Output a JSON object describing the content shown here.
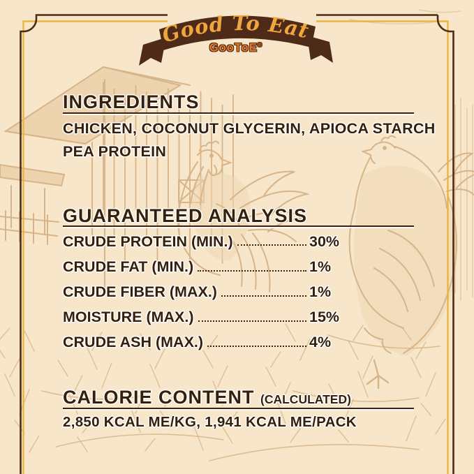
{
  "banner": {
    "title": "Good To Eat",
    "logo": "GooToE",
    "reg_mark": "®"
  },
  "ingredients": {
    "heading": "INGREDIENTS",
    "line1": "CHICKEN, COCONUT GLYCERIN, APIOCA STARCH",
    "line2": "PEA PROTEIN"
  },
  "guaranteed_analysis": {
    "heading": "GUARANTEED ANALYSIS",
    "rows": [
      {
        "label": "CRUDE PROTEIN (MIN.)",
        "value": "30%"
      },
      {
        "label": "CRUDE FAT (MIN.)",
        "value": "1%"
      },
      {
        "label": "CRUDE FIBER (MAX.)",
        "value": "1%"
      },
      {
        "label": "MOISTURE (MAX.)",
        "value": "15%"
      },
      {
        "label": "CRUDE ASH (MAX.)",
        "value": "4%"
      }
    ]
  },
  "calorie_content": {
    "heading": "CALORIE CONTENT",
    "qualifier": "(CALCULATED)",
    "line": "2,850 KCAL ME/KG, 1,941 KCAL ME/PACK"
  },
  "colors": {
    "background": "#f7e6c9",
    "text_dark_brown": "#35200e",
    "frame_gold": "#e9b544",
    "frame_dark": "#4f2c16",
    "ribbon_brown": "#4e2b18",
    "ribbon_gold_text": "#efa63d",
    "logo_orange": "#ee7c24",
    "illustration_tan": "#cfa87a"
  }
}
